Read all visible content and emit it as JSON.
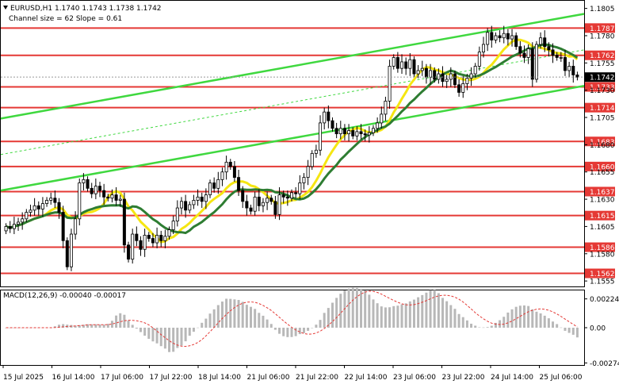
{
  "chart_data": {
    "type": "candlestick",
    "symbol_line": "EURUSD,H1  1.1740 1.1743 1.1738 1.1742",
    "channel_line": "Channel size = 62 Slope = 0.61",
    "macd_label": "MACD(12,26,9) -0.00040 -0.00017",
    "current_price": "1.1742",
    "price_ylim": [
      1.155,
      1.1812
    ],
    "macd_ylim": [
      -0.0029,
      0.0029
    ],
    "price_ticks": [
      "1.1805",
      "1.1780",
      "1.1755",
      "1.1730",
      "1.1705",
      "1.1680",
      "1.1655",
      "1.1630",
      "1.1605",
      "1.1580",
      "1.1555"
    ],
    "macd_ticks": [
      "0.00224",
      "0.00",
      "-0.00274"
    ],
    "x_labels": [
      "15 Jul 2025",
      "16 Jul 14:00",
      "17 Jul 06:00",
      "17 Jul 22:00",
      "18 Jul 14:00",
      "21 Jul 06:00",
      "21 Jul 22:00",
      "22 Jul 14:00",
      "23 Jul 06:00",
      "23 Jul 22:00",
      "24 Jul 14:00",
      "25 Jul 06:00"
    ],
    "levels": [
      {
        "label": "1.1787",
        "value": 1.1787
      },
      {
        "label": "1.1762",
        "value": 1.1762
      },
      {
        "label": "1.1733",
        "value": 1.1733
      },
      {
        "label": "1.1714",
        "value": 1.1714
      },
      {
        "label": "1.1683",
        "value": 1.1683
      },
      {
        "label": "1.1660",
        "value": 1.166
      },
      {
        "label": "1.1637",
        "value": 1.1637
      },
      {
        "label": "1.1615",
        "value": 1.1615
      },
      {
        "label": "1.1586",
        "value": 1.1586
      },
      {
        "label": "1.1562",
        "value": 1.1562
      }
    ],
    "candles_c": [
      1.1605,
      1.1603,
      1.1607,
      1.1609,
      1.1612,
      1.1618,
      1.162,
      1.1624,
      1.1621,
      1.1626,
      1.1629,
      1.1631,
      1.1627,
      1.1618,
      1.1592,
      1.1568,
      1.1598,
      1.1612,
      1.1645,
      1.1648,
      1.164,
      1.1635,
      1.1642,
      1.1638,
      1.1632,
      1.1631,
      1.1634,
      1.1629,
      1.163,
      1.1588,
      1.1575,
      1.1598,
      1.1592,
      1.1584,
      1.1597,
      1.1594,
      1.159,
      1.1597,
      1.1592,
      1.1596,
      1.1602,
      1.161,
      1.1622,
      1.1628,
      1.162,
      1.1625,
      1.1629,
      1.1632,
      1.1628,
      1.1634,
      1.1645,
      1.164,
      1.1648,
      1.1655,
      1.1664,
      1.166,
      1.165,
      1.1638,
      1.1628,
      1.1622,
      1.1619,
      1.1632,
      1.1624,
      1.1627,
      1.1631,
      1.1628,
      1.1616,
      1.1634,
      1.1632,
      1.1631,
      1.1636,
      1.1635,
      1.1645,
      1.165,
      1.166,
      1.1672,
      1.1675,
      1.17,
      1.171,
      1.1702,
      1.1695,
      1.169,
      1.1695,
      1.169,
      1.1693,
      1.1688,
      1.1692,
      1.169,
      1.1689,
      1.1691,
      1.1695,
      1.17,
      1.1708,
      1.172,
      1.1752,
      1.176,
      1.175,
      1.1756,
      1.175,
      1.1758,
      1.1745,
      1.1748,
      1.175,
      1.1742,
      1.1748,
      1.174,
      1.1745,
      1.1738,
      1.174,
      1.1745,
      1.1735,
      1.1728,
      1.1736,
      1.1741,
      1.1745,
      1.1752,
      1.1765,
      1.1772,
      1.1783,
      1.1776,
      1.178,
      1.1778,
      1.1782,
      1.1777,
      1.178,
      1.177,
      1.1764,
      1.176,
      1.1768,
      1.174,
      1.1772,
      1.1778,
      1.177,
      1.1767,
      1.1762,
      1.176,
      1.176,
      1.1748,
      1.1752,
      1.1744,
      1.1742
    ]
  }
}
